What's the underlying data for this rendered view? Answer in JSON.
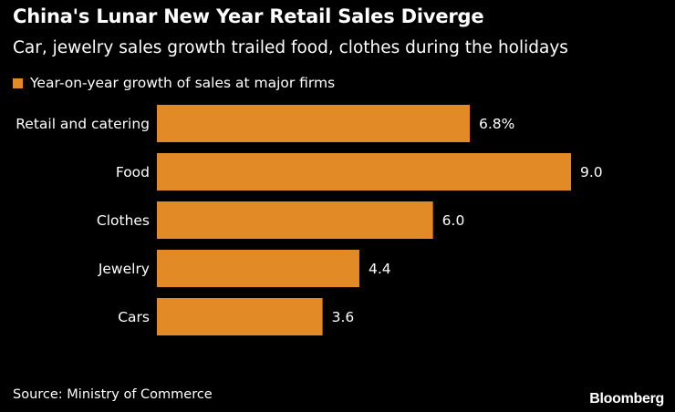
{
  "colors": {
    "background": "#000000",
    "bar": "#e28a26",
    "text": "#ffffff"
  },
  "chart_data": {
    "type": "bar",
    "orientation": "horizontal",
    "title": "China's Lunar New Year Retail Sales Diverge",
    "subtitle": "Car, jewelry sales growth trailed food, clothes during the holidays",
    "categories": [
      "Retail and catering",
      "Food",
      "Clothes",
      "Jewelry",
      "Cars"
    ],
    "series": [
      {
        "name": "Year-on-year growth of sales at major firms",
        "values": [
          6.8,
          9.0,
          6.0,
          4.4,
          3.6
        ],
        "data_labels": [
          "6.8%",
          "9.0",
          "6.0",
          "4.4",
          "3.6"
        ]
      }
    ],
    "xlim": [
      0,
      9
    ],
    "grid": false,
    "legend_position": "top-left"
  },
  "footer": {
    "source": "Source: Ministry of Commerce",
    "brand": "Bloomberg"
  }
}
